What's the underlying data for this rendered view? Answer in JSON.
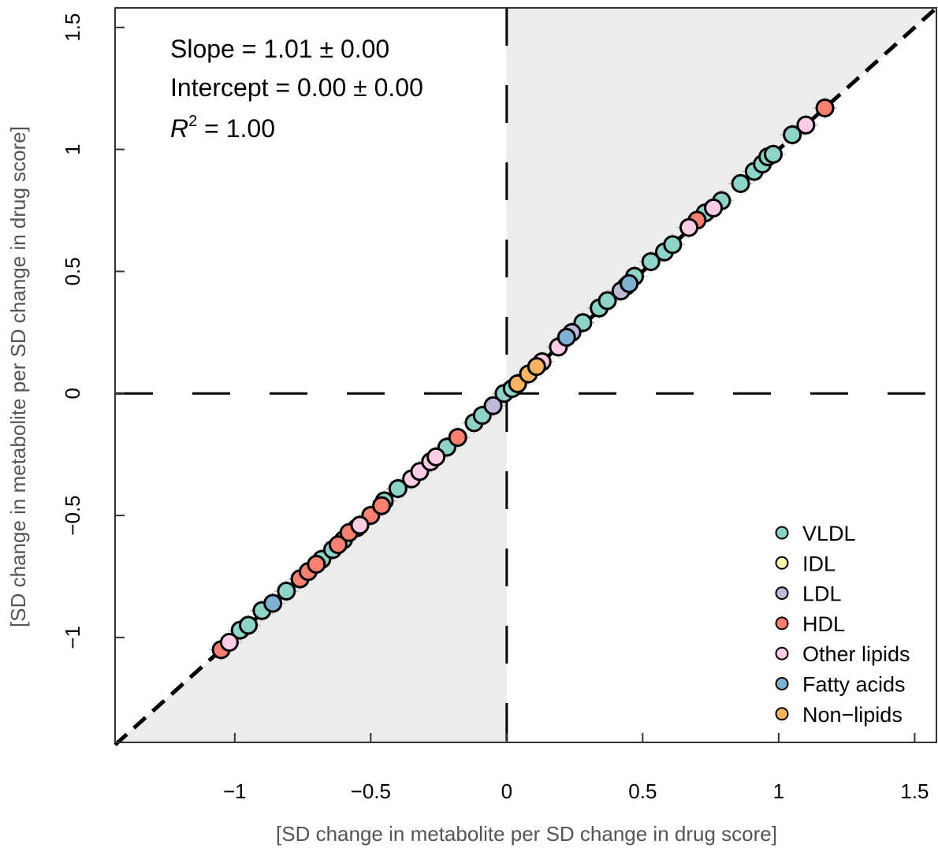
{
  "chart_data": {
    "type": "scatter",
    "title": "",
    "xlabel": "[SD change in metabolite per SD change in drug score]",
    "ylabel": "[SD change in metabolite per SD change in drug score]",
    "xlim": [
      -1.44,
      1.58
    ],
    "ylim": [
      -1.43,
      1.58
    ],
    "xticks": [
      -1,
      -0.5,
      0,
      0.5,
      1,
      1.5
    ],
    "yticks": [
      -1,
      -0.5,
      0,
      0.5,
      1,
      1.5
    ],
    "xtick_labels": [
      "−1",
      "−0.5",
      "0",
      "0.5",
      "1",
      "1.5"
    ],
    "ytick_labels": [
      "−1",
      "−0.5",
      "0",
      "0.5",
      "1",
      "1.5"
    ],
    "grid": false,
    "shading": "shaded quadrants where x > 0 and y > x, and x < 0 and y < x",
    "reference_line": {
      "type": "identity",
      "style": "dashed",
      "slope": 1,
      "intercept": 0
    },
    "annotations": {
      "slope": "Slope = 1.01 ± 0.00",
      "intercept": "Intercept = 0.00 ± 0.00",
      "r2_symbol": "R",
      "r2_power": "2",
      "r2_value": " = 1.00"
    },
    "legend_position": "bottom-right",
    "legend": [
      {
        "name": "VLDL",
        "color": "#8dd3c7"
      },
      {
        "name": "IDL",
        "color": "#ffffb3"
      },
      {
        "name": "LDL",
        "color": "#bebada"
      },
      {
        "name": "HDL",
        "color": "#fb8072"
      },
      {
        "name": "Other lipids",
        "color": "#fccde5"
      },
      {
        "name": "Fatty acids",
        "color": "#80b1d3"
      },
      {
        "name": "Non−lipids",
        "color": "#fdb462"
      }
    ],
    "series": [
      {
        "name": "VLDL",
        "color": "#8dd3c7",
        "points": [
          [
            -0.98,
            -0.97
          ],
          [
            -0.95,
            -0.95
          ],
          [
            -0.9,
            -0.89
          ],
          [
            -0.81,
            -0.81
          ],
          [
            -0.76,
            -0.76
          ],
          [
            -0.68,
            -0.68
          ],
          [
            -0.64,
            -0.64
          ],
          [
            -0.6,
            -0.6
          ],
          [
            -0.45,
            -0.44
          ],
          [
            -0.4,
            -0.39
          ],
          [
            -0.22,
            -0.22
          ],
          [
            -0.12,
            -0.12
          ],
          [
            -0.09,
            -0.09
          ],
          [
            -0.01,
            0.0
          ],
          [
            0.02,
            0.02
          ],
          [
            0.28,
            0.29
          ],
          [
            0.34,
            0.35
          ],
          [
            0.37,
            0.38
          ],
          [
            0.44,
            0.44
          ],
          [
            0.47,
            0.48
          ],
          [
            0.53,
            0.54
          ],
          [
            0.58,
            0.58
          ],
          [
            0.61,
            0.61
          ],
          [
            0.73,
            0.74
          ],
          [
            0.79,
            0.79
          ],
          [
            0.86,
            0.86
          ],
          [
            0.91,
            0.91
          ],
          [
            0.94,
            0.94
          ],
          [
            0.96,
            0.97
          ],
          [
            0.98,
            0.98
          ],
          [
            1.05,
            1.06
          ]
        ]
      },
      {
        "name": "LDL",
        "color": "#bebada",
        "points": [
          [
            -0.55,
            -0.55
          ],
          [
            -0.05,
            -0.05
          ],
          [
            0.24,
            0.25
          ],
          [
            0.42,
            0.42
          ]
        ]
      },
      {
        "name": "HDL",
        "color": "#fb8072",
        "points": [
          [
            -1.05,
            -1.05
          ],
          [
            -0.76,
            -0.76
          ],
          [
            -0.73,
            -0.73
          ],
          [
            -0.7,
            -0.7
          ],
          [
            -0.62,
            -0.62
          ],
          [
            -0.58,
            -0.57
          ],
          [
            -0.5,
            -0.5
          ],
          [
            -0.46,
            -0.46
          ],
          [
            -0.18,
            -0.18
          ],
          [
            0.7,
            0.71
          ],
          [
            1.17,
            1.17
          ]
        ]
      },
      {
        "name": "Other lipids",
        "color": "#fccde5",
        "points": [
          [
            -1.02,
            -1.02
          ],
          [
            -0.54,
            -0.54
          ],
          [
            -0.35,
            -0.35
          ],
          [
            -0.32,
            -0.32
          ],
          [
            -0.28,
            -0.28
          ],
          [
            -0.26,
            -0.26
          ],
          [
            0.13,
            0.13
          ],
          [
            0.19,
            0.19
          ],
          [
            0.67,
            0.68
          ],
          [
            0.76,
            0.76
          ],
          [
            1.1,
            1.1
          ]
        ]
      },
      {
        "name": "Fatty acids",
        "color": "#80b1d3",
        "points": [
          [
            -0.86,
            -0.86
          ],
          [
            0.22,
            0.23
          ],
          [
            0.45,
            0.45
          ]
        ]
      },
      {
        "name": "Non−lipids",
        "color": "#fdb462",
        "points": [
          [
            0.04,
            0.04
          ],
          [
            0.08,
            0.08
          ],
          [
            0.11,
            0.11
          ]
        ]
      }
    ]
  }
}
